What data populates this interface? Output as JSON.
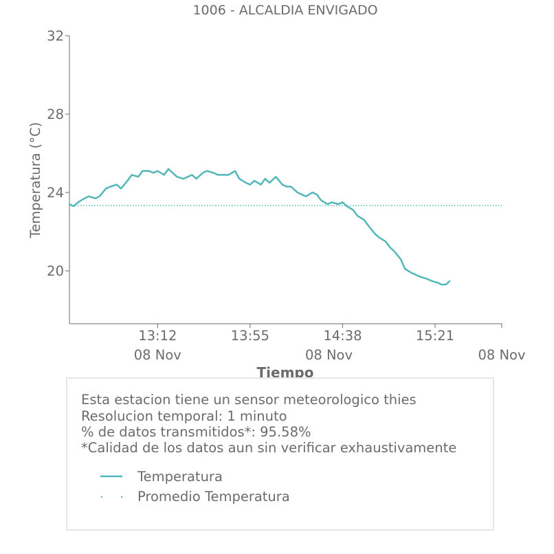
{
  "colors": {
    "series": "#52b7b9",
    "text": "#6b6b6b",
    "axis": "#6b6b6b"
  },
  "chart_data": {
    "type": "line",
    "title": "1006 - ALCALDIA ENVIGADO",
    "xlabel": "Tiempo",
    "ylabel": "Temperatura (°C)",
    "ylim": [
      17.3,
      32
    ],
    "yticks": [
      20,
      24,
      28,
      32
    ],
    "xlim": [
      "12:31",
      "15:52"
    ],
    "xticks": [
      {
        "time": "13:12",
        "date": ""
      },
      {
        "time": "13:55",
        "date": "08 Nov"
      },
      {
        "time": "14:38",
        "date": "08 Nov"
      },
      {
        "time": "15:21",
        "date": "08 Nov"
      }
    ],
    "x_date_label": "08 Nov",
    "grid": false,
    "series": [
      {
        "name": "Temperatura",
        "style": "solid",
        "x": [
          "12:31",
          "12:33",
          "12:35",
          "12:38",
          "12:40",
          "12:43",
          "12:45",
          "12:48",
          "12:50",
          "12:53",
          "12:55",
          "12:58",
          "13:00",
          "13:03",
          "13:05",
          "13:08",
          "13:10",
          "13:12",
          "13:15",
          "13:17",
          "13:19",
          "13:21",
          "13:24",
          "13:26",
          "13:28",
          "13:30",
          "13:33",
          "13:35",
          "13:38",
          "13:40",
          "13:43",
          "13:45",
          "13:48",
          "13:50",
          "13:53",
          "13:55",
          "13:57",
          "14:00",
          "14:02",
          "14:04",
          "14:07",
          "14:10",
          "14:12",
          "14:14",
          "14:17",
          "14:19",
          "14:21",
          "14:24",
          "14:26",
          "14:28",
          "14:31",
          "14:33",
          "14:36",
          "14:38",
          "14:40",
          "14:43",
          "14:45",
          "14:48",
          "14:50",
          "14:53",
          "14:55",
          "14:58",
          "15:00",
          "15:02",
          "15:05",
          "15:07",
          "15:10",
          "15:12",
          "15:14",
          "15:17",
          "15:19",
          "15:22",
          "15:24",
          "15:26",
          "15:28"
        ],
        "values": [
          23.4,
          23.3,
          23.5,
          23.7,
          23.8,
          23.7,
          23.8,
          24.2,
          24.3,
          24.4,
          24.2,
          24.6,
          24.9,
          24.8,
          25.1,
          25.1,
          25.0,
          25.1,
          24.9,
          25.2,
          25.0,
          24.8,
          24.7,
          24.8,
          24.9,
          24.7,
          25.0,
          25.1,
          25.0,
          24.9,
          24.9,
          24.9,
          25.1,
          24.7,
          24.5,
          24.4,
          24.6,
          24.4,
          24.7,
          24.5,
          24.8,
          24.4,
          24.3,
          24.3,
          24.0,
          23.9,
          23.8,
          24.0,
          23.9,
          23.6,
          23.4,
          23.5,
          23.4,
          23.5,
          23.3,
          23.1,
          22.8,
          22.6,
          22.3,
          21.9,
          21.7,
          21.5,
          21.2,
          21.0,
          20.6,
          20.1,
          19.9,
          19.8,
          19.7,
          19.6,
          19.5,
          19.4,
          19.3,
          19.3,
          19.5
        ]
      },
      {
        "name": "Promedio Temperatura",
        "style": "dotted",
        "x": [
          "12:31",
          "15:52"
        ],
        "values": [
          23.33,
          23.33
        ]
      }
    ]
  },
  "info": {
    "lines": [
      "Esta estacion tiene un sensor meteorologico thies",
      "Resolucion temporal: 1 minuto",
      "% de datos transmitidos*: 95.58%",
      "*Calidad de los datos aun sin verificar exhaustivamente"
    ],
    "legend": [
      {
        "label": "Temperatura",
        "style": "solid"
      },
      {
        "label": "Promedio Temperatura",
        "style": "dotted"
      }
    ]
  }
}
